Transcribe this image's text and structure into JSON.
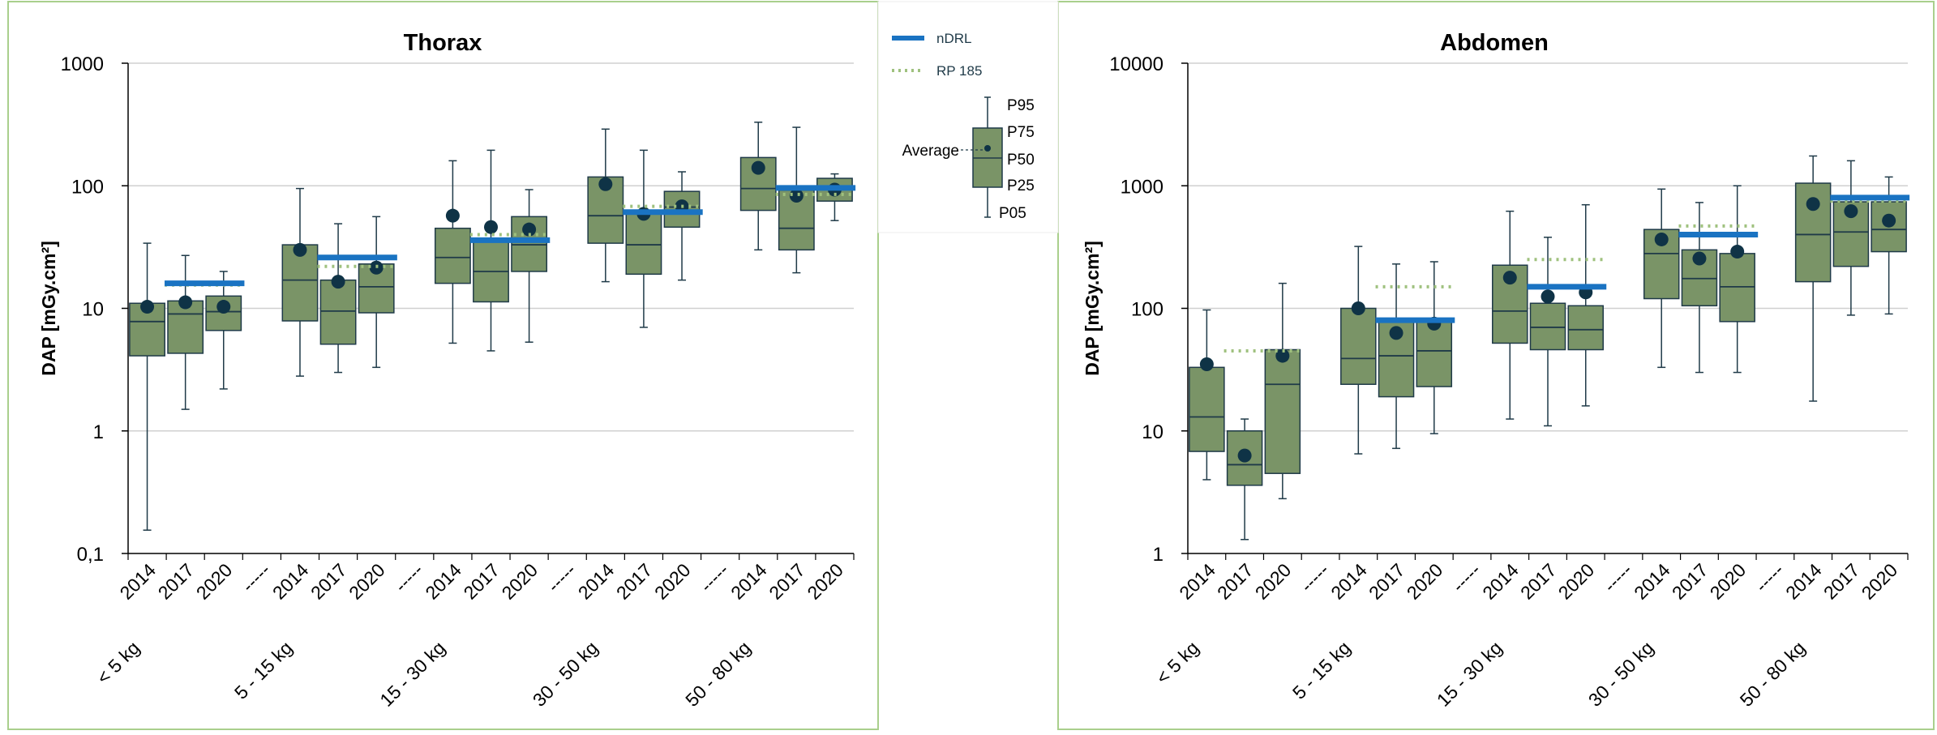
{
  "colors": {
    "box_fill": "#7a9467",
    "box_stroke": "#1f3a48",
    "mean_dot": "#0f3346",
    "ndrl": "#1a73c2",
    "rp185": "#9fc17e",
    "panel_border": "#a9cf8c",
    "grid": "#d0d0d0",
    "axis": "#000000"
  },
  "legend": {
    "ndrl_label": "nDRL",
    "rp_label": "RP 185",
    "average_label": "Average",
    "p95_label": "P95",
    "p75_label": "P75",
    "p50_label": "P50",
    "p25_label": "P25",
    "p05_label": "P05"
  },
  "chart_data": [
    {
      "type": "box",
      "title": "Thorax",
      "ylabel": "DAP [mGy.cm²]",
      "yscale": "log",
      "ylim": [
        0.1,
        1000
      ],
      "ytick_labels": [
        "0,1",
        "1",
        "10",
        "100",
        "1000"
      ],
      "grid": true,
      "separator_label": "-----",
      "groups": [
        {
          "name": "< 5 kg",
          "boxes": [
            {
              "year": "2014",
              "p05": 0.155,
              "p25": 4.1,
              "p50": 7.8,
              "p75": 11.0,
              "p95": 34,
              "mean": 10.3
            },
            {
              "year": "2017",
              "p05": 1.5,
              "p25": 4.3,
              "p50": 9.0,
              "p75": 11.5,
              "p95": 27,
              "mean": 11.2
            },
            {
              "year": "2020",
              "p05": 2.2,
              "p25": 6.6,
              "p50": 9.4,
              "p75": 12.6,
              "p95": 20,
              "mean": 10.3
            }
          ],
          "ndrl": 16,
          "rp185": 15.5
        },
        {
          "name": "5 - 15 kg",
          "boxes": [
            {
              "year": "2014",
              "p05": 2.8,
              "p25": 7.9,
              "p50": 17,
              "p75": 33,
              "p95": 95,
              "mean": 30
            },
            {
              "year": "2017",
              "p05": 3.0,
              "p25": 5.1,
              "p50": 9.5,
              "p75": 17,
              "p95": 49,
              "mean": 16.5
            },
            {
              "year": "2020",
              "p05": 3.3,
              "p25": 9.2,
              "p50": 15,
              "p75": 23,
              "p95": 56,
              "mean": 21.5
            }
          ],
          "ndrl": 26,
          "rp185": 22
        },
        {
          "name": "15 - 30 kg",
          "boxes": [
            {
              "year": "2014",
              "p05": 5.2,
              "p25": 16,
              "p50": 26,
              "p75": 45,
              "p95": 160,
              "mean": 57
            },
            {
              "year": "2017",
              "p05": 4.5,
              "p25": 11.3,
              "p50": 20,
              "p75": 35,
              "p95": 195,
              "mean": 46
            },
            {
              "year": "2020",
              "p05": 5.3,
              "p25": 20,
              "p50": 33,
              "p75": 56,
              "p95": 93,
              "mean": 44
            }
          ],
          "ndrl": 36,
          "rp185": 40
        },
        {
          "name": "30 - 50 kg",
          "boxes": [
            {
              "year": "2014",
              "p05": 16.5,
              "p25": 34,
              "p50": 57,
              "p75": 118,
              "p95": 290,
              "mean": 103
            },
            {
              "year": "2017",
              "p05": 7.0,
              "p25": 19,
              "p50": 33,
              "p75": 60,
              "p95": 195,
              "mean": 59
            },
            {
              "year": "2020",
              "p05": 17,
              "p25": 46,
              "p50": 67,
              "p75": 90,
              "p95": 130,
              "mean": 68
            }
          ],
          "ndrl": 61,
          "rp185": 68
        },
        {
          "name": "50 - 80 kg",
          "boxes": [
            {
              "year": "2014",
              "p05": 30,
              "p25": 63,
              "p50": 95,
              "p75": 170,
              "p95": 330,
              "mean": 140
            },
            {
              "year": "2017",
              "p05": 19.5,
              "p25": 30,
              "p50": 45,
              "p75": 92,
              "p95": 300,
              "mean": 83
            },
            {
              "year": "2020",
              "p05": 52,
              "p25": 75,
              "p50": 93,
              "p75": 115,
              "p95": 125,
              "mean": 93
            }
          ],
          "ndrl": 96,
          "rp185": 85
        }
      ]
    },
    {
      "type": "box",
      "title": "Abdomen",
      "ylabel": "DAP [mGy.cm²]",
      "yscale": "log",
      "ylim": [
        1,
        10000
      ],
      "ytick_labels": [
        "1",
        "10",
        "100",
        "1000",
        "10000"
      ],
      "grid": true,
      "separator_label": "-----",
      "groups": [
        {
          "name": "< 5 kg",
          "boxes": [
            {
              "year": "2014",
              "p05": 4.0,
              "p25": 6.8,
              "p50": 13,
              "p75": 33,
              "p95": 97,
              "mean": 35
            },
            {
              "year": "2017",
              "p05": 1.3,
              "p25": 3.6,
              "p50": 5.3,
              "p75": 10,
              "p95": 12.5,
              "mean": 6.3
            },
            {
              "year": "2020",
              "p05": 2.8,
              "p25": 4.5,
              "p50": 24,
              "p75": 46,
              "p95": 160,
              "mean": 41
            }
          ],
          "ndrl": null,
          "rp185": 45
        },
        {
          "name": "5 - 15 kg",
          "boxes": [
            {
              "year": "2014",
              "p05": 6.5,
              "p25": 24,
              "p50": 39,
              "p75": 100,
              "p95": 320,
              "mean": 100
            },
            {
              "year": "2017",
              "p05": 7.2,
              "p25": 19,
              "p50": 41,
              "p75": 78,
              "p95": 230,
              "mean": 63
            },
            {
              "year": "2020",
              "p05": 9.5,
              "p25": 23,
              "p50": 45,
              "p75": 83,
              "p95": 240,
              "mean": 75
            }
          ],
          "ndrl": 80,
          "rp185": 150
        },
        {
          "name": "15 - 30 kg",
          "boxes": [
            {
              "year": "2014",
              "p05": 12.5,
              "p25": 52,
              "p50": 95,
              "p75": 225,
              "p95": 620,
              "mean": 178
            },
            {
              "year": "2017",
              "p05": 11,
              "p25": 46,
              "p50": 70,
              "p75": 110,
              "p95": 380,
              "mean": 125
            },
            {
              "year": "2020",
              "p05": 16,
              "p25": 46,
              "p50": 67,
              "p75": 105,
              "p95": 700,
              "mean": 135
            }
          ],
          "ndrl": 150,
          "rp185": 250
        },
        {
          "name": "30 - 50 kg",
          "boxes": [
            {
              "year": "2014",
              "p05": 33,
              "p25": 120,
              "p50": 280,
              "p75": 440,
              "p95": 940,
              "mean": 365
            },
            {
              "year": "2017",
              "p05": 30,
              "p25": 105,
              "p50": 175,
              "p75": 300,
              "p95": 730,
              "mean": 255
            },
            {
              "year": "2020",
              "p05": 30,
              "p25": 78,
              "p50": 150,
              "p75": 280,
              "p95": 1000,
              "mean": 290
            }
          ],
          "ndrl": 400,
          "rp185": 470
        },
        {
          "name": "50 - 80 kg",
          "boxes": [
            {
              "year": "2014",
              "p05": 17.5,
              "p25": 165,
              "p50": 400,
              "p75": 1050,
              "p95": 1750,
              "mean": 710
            },
            {
              "year": "2017",
              "p05": 88,
              "p25": 220,
              "p50": 420,
              "p75": 740,
              "p95": 1600,
              "mean": 620
            },
            {
              "year": "2020",
              "p05": 90,
              "p25": 290,
              "p50": 440,
              "p75": 740,
              "p95": 1180,
              "mean": 520
            }
          ],
          "ndrl": 800,
          "rp185": 750
        }
      ]
    }
  ]
}
